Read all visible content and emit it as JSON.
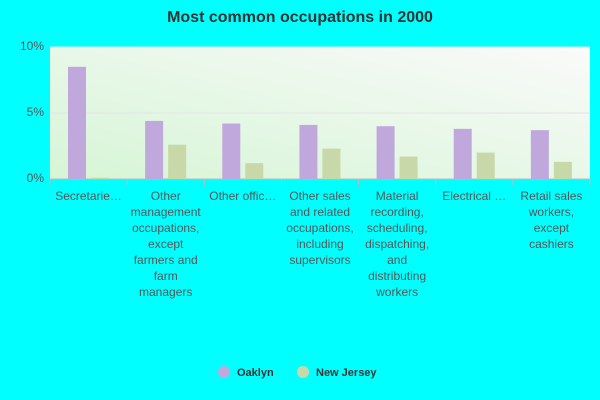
{
  "chart_data": {
    "type": "bar",
    "title": "Most common occupations in 2000",
    "categories": [
      "Secretarie…",
      "Other management occupations, except farmers and farm managers",
      "Other offic…",
      "Other sales and related occupations, including supervisors",
      "Material recording, scheduling, dispatching, and distributing workers",
      "Electrical …",
      "Retail sales workers, except cashiers"
    ],
    "series": [
      {
        "name": "Oaklyn",
        "color": "#c0a8dc",
        "values": [
          8.5,
          4.4,
          4.2,
          4.1,
          4.0,
          3.8,
          3.7
        ]
      },
      {
        "name": "New Jersey",
        "color": "#c8d8a8",
        "values": [
          0.1,
          2.6,
          1.2,
          2.3,
          1.7,
          2.0,
          1.3
        ]
      }
    ],
    "ylim": [
      0,
      10
    ],
    "yticks": [
      {
        "value": 0,
        "label": "0%"
      },
      {
        "value": 5,
        "label": "5%"
      },
      {
        "value": 10,
        "label": "10%"
      }
    ],
    "grid": true
  }
}
